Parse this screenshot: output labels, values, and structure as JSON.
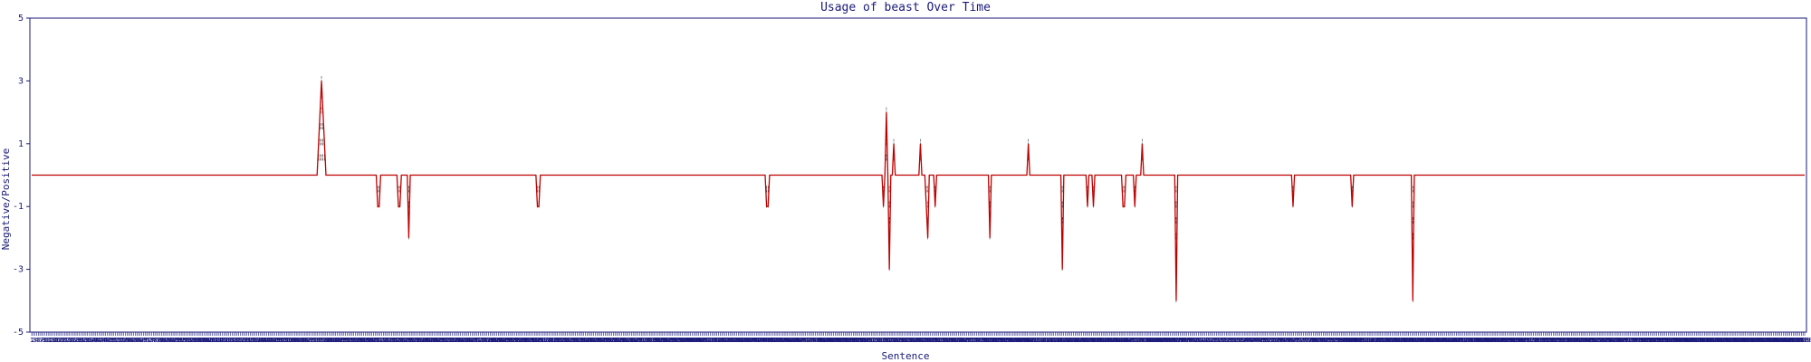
{
  "chart_data": {
    "type": "line",
    "title": "Usage of beast Over Time",
    "xlabel": "Sentence",
    "ylabel": "Negative/Positive",
    "ylim": [
      -5,
      5
    ],
    "yticks": [
      -5,
      -3,
      -1,
      1,
      3,
      5
    ],
    "x_count": 1080,
    "grid": false,
    "series": [
      {
        "values": [
          0,
          0,
          0,
          0,
          0,
          0,
          0,
          0,
          0,
          0,
          0,
          0,
          0,
          0,
          0,
          0,
          0,
          0,
          0,
          0,
          0,
          0,
          0,
          0,
          0,
          0,
          0,
          0,
          0,
          0,
          0,
          0,
          0,
          0,
          0,
          0,
          0,
          0,
          0,
          0,
          0,
          0,
          0,
          0,
          0,
          0,
          0,
          0,
          0,
          0,
          0,
          0,
          0,
          0,
          0,
          0,
          0,
          0,
          0,
          0,
          0,
          0,
          0,
          0,
          0,
          0,
          0,
          0,
          0,
          0,
          0,
          0,
          0,
          0,
          0,
          0,
          0,
          0,
          0,
          0,
          0,
          0,
          0,
          0,
          0,
          0,
          0,
          0,
          0,
          0,
          0,
          0,
          0,
          0,
          0,
          0,
          0,
          0,
          0,
          0,
          0,
          0,
          0,
          0,
          0,
          0,
          0,
          0,
          0,
          0,
          0,
          0,
          0,
          0,
          0,
          0,
          0,
          0,
          0,
          0,
          0,
          0,
          0,
          0,
          0,
          0,
          0,
          0,
          0,
          0,
          0,
          0,
          0,
          0,
          0,
          0,
          0,
          0,
          0,
          0,
          0,
          0,
          0,
          0,
          0,
          0,
          0,
          0,
          0,
          0,
          0,
          0,
          0,
          0,
          0,
          0,
          0,
          0,
          0,
          0,
          0,
          0,
          0,
          0,
          0,
          0,
          0,
          0,
          0,
          0,
          0,
          0,
          0,
          0,
          0,
          0,
          0,
          0,
          0,
          0,
          0,
          0,
          0,
          0,
          0,
          0,
          0,
          0,
          0,
          0,
          0,
          0,
          0,
          0,
          1,
          2,
          3,
          2,
          1,
          0,
          0,
          0,
          0,
          0,
          0,
          0,
          0,
          0,
          0,
          0,
          0,
          0,
          0,
          0,
          0,
          0,
          0,
          0,
          0,
          0,
          0,
          0,
          0,
          0,
          0,
          0,
          0,
          0,
          0,
          0,
          0,
          0,
          0,
          0,
          -1,
          -1,
          0,
          0,
          0,
          0,
          0,
          0,
          0,
          0,
          0,
          0,
          0,
          0,
          -1,
          -1,
          0,
          0,
          0,
          0,
          0,
          -2,
          0,
          0,
          0,
          0,
          0,
          0,
          0,
          0,
          0,
          0,
          0,
          0,
          0,
          0,
          0,
          0,
          0,
          0,
          0,
          0,
          0,
          0,
          0,
          0,
          0,
          0,
          0,
          0,
          0,
          0,
          0,
          0,
          0,
          0,
          0,
          0,
          0,
          0,
          0,
          0,
          0,
          0,
          0,
          0,
          0,
          0,
          0,
          0,
          0,
          0,
          0,
          0,
          0,
          0,
          0,
          0,
          0,
          0,
          0,
          0,
          0,
          0,
          0,
          0,
          0,
          0,
          0,
          0,
          0,
          0,
          0,
          0,
          0,
          0,
          0,
          0,
          0,
          0,
          0,
          0,
          0,
          0,
          0,
          0,
          0,
          0,
          -1,
          -1,
          0,
          0,
          0,
          0,
          0,
          0,
          0,
          0,
          0,
          0,
          0,
          0,
          0,
          0,
          0,
          0,
          0,
          0,
          0,
          0,
          0,
          0,
          0,
          0,
          0,
          0,
          0,
          0,
          0,
          0,
          0,
          0,
          0,
          0,
          0,
          0,
          0,
          0,
          0,
          0,
          0,
          0,
          0,
          0,
          0,
          0,
          0,
          0,
          0,
          0,
          0,
          0,
          0,
          0,
          0,
          0,
          0,
          0,
          0,
          0,
          0,
          0,
          0,
          0,
          0,
          0,
          0,
          0,
          0,
          0,
          0,
          0,
          0,
          0,
          0,
          0,
          0,
          0,
          0,
          0,
          0,
          0,
          0,
          0,
          0,
          0,
          0,
          0,
          0,
          0,
          0,
          0,
          0,
          0,
          0,
          0,
          0,
          0,
          0,
          0,
          0,
          0,
          0,
          0,
          0,
          0,
          0,
          0,
          0,
          0,
          0,
          0,
          0,
          0,
          0,
          0,
          0,
          0,
          0,
          0,
          0,
          0,
          0,
          0,
          0,
          0,
          0,
          0,
          0,
          0,
          0,
          0,
          0,
          0,
          0,
          0,
          0,
          0,
          0,
          0,
          0,
          0,
          0,
          0,
          0,
          0,
          0,
          0,
          0,
          0,
          0,
          0,
          0,
          -1,
          -1,
          0,
          0,
          0,
          0,
          0,
          0,
          0,
          0,
          0,
          0,
          0,
          0,
          0,
          0,
          0,
          0,
          0,
          0,
          0,
          0,
          0,
          0,
          0,
          0,
          0,
          0,
          0,
          0,
          0,
          0,
          0,
          0,
          0,
          0,
          0,
          0,
          0,
          0,
          0,
          0,
          0,
          0,
          0,
          0,
          0,
          0,
          0,
          0,
          0,
          0,
          0,
          0,
          0,
          0,
          0,
          0,
          0,
          0,
          0,
          0,
          0,
          0,
          0,
          0,
          0,
          0,
          0,
          0,
          0,
          0,
          0,
          0,
          0,
          0,
          0,
          0,
          0,
          -1,
          0,
          2,
          0,
          -3,
          0,
          0,
          1,
          0,
          0,
          0,
          0,
          0,
          0,
          0,
          0,
          0,
          0,
          0,
          0,
          0,
          0,
          0,
          0,
          0,
          1,
          0,
          0,
          0,
          -1,
          -2,
          0,
          0,
          0,
          0,
          -1,
          0,
          0,
          0,
          0,
          0,
          0,
          0,
          0,
          0,
          0,
          0,
          0,
          0,
          0,
          0,
          0,
          0,
          0,
          0,
          0,
          0,
          0,
          0,
          0,
          0,
          0,
          0,
          0,
          0,
          0,
          0,
          0,
          0,
          0,
          0,
          0,
          -2,
          0,
          0,
          0,
          0,
          0,
          0,
          0,
          0,
          0,
          0,
          0,
          0,
          0,
          0,
          0,
          0,
          0,
          0,
          0,
          0,
          0,
          0,
          0,
          0,
          0,
          1,
          0,
          0,
          0,
          0,
          0,
          0,
          0,
          0,
          0,
          0,
          0,
          0,
          0,
          0,
          0,
          0,
          0,
          0,
          0,
          0,
          0,
          0,
          -3,
          0,
          0,
          0,
          0,
          0,
          0,
          0,
          0,
          0,
          0,
          0,
          0,
          0,
          0,
          0,
          0,
          -1,
          0,
          0,
          0,
          -1,
          0,
          0,
          0,
          0,
          0,
          0,
          0,
          0,
          0,
          0,
          0,
          0,
          0,
          0,
          0,
          0,
          0,
          0,
          0,
          -1,
          -1,
          0,
          0,
          0,
          0,
          0,
          0,
          -1,
          0,
          0,
          0,
          0,
          1,
          0,
          0,
          0,
          0,
          0,
          0,
          0,
          0,
          0,
          0,
          0,
          0,
          0,
          0,
          0,
          0,
          0,
          0,
          0,
          0,
          0,
          0,
          -4,
          0,
          0,
          0,
          0,
          0,
          0,
          0,
          0,
          0,
          0,
          0,
          0,
          0,
          0,
          0,
          0,
          0,
          0,
          0,
          0,
          0,
          0,
          0,
          0,
          0,
          0,
          0,
          0,
          0,
          0,
          0,
          0,
          0,
          0,
          0,
          0,
          0,
          0,
          0,
          0,
          0,
          0,
          0,
          0,
          0,
          0,
          0,
          0,
          0,
          0,
          0,
          0,
          0,
          0,
          0,
          0,
          0,
          0,
          0,
          0,
          0,
          0,
          0,
          0,
          0,
          0,
          0,
          0,
          0,
          0,
          0,
          0,
          0,
          0,
          0,
          0,
          0,
          0,
          -1,
          0,
          0,
          0,
          0,
          0,
          0,
          0,
          0,
          0,
          0,
          0,
          0,
          0,
          0,
          0,
          0,
          0,
          0,
          0,
          0,
          0,
          0,
          0,
          0,
          0,
          0,
          0,
          0,
          0,
          0,
          0,
          0,
          0,
          0,
          0,
          0,
          0,
          0,
          0,
          -1,
          0,
          0,
          0,
          0,
          0,
          0,
          0,
          0,
          0,
          0,
          0,
          0,
          0,
          0,
          0,
          0,
          0,
          0,
          0,
          0,
          0,
          0,
          0,
          0,
          0,
          0,
          0,
          0,
          0,
          0,
          0,
          0,
          0,
          0,
          0,
          0,
          0,
          0,
          0,
          0,
          -4,
          0,
          0,
          0,
          0,
          0,
          0,
          0,
          0,
          0,
          0,
          0,
          0,
          0,
          0,
          0,
          0,
          0,
          0,
          0,
          0,
          0,
          0,
          0,
          0,
          0,
          0,
          0,
          0,
          0,
          0,
          0,
          0,
          0,
          0,
          0,
          0,
          0,
          0,
          0,
          0,
          0,
          0,
          0,
          0,
          0,
          0,
          0,
          0,
          0,
          0,
          0,
          0,
          0,
          0,
          0,
          0,
          0,
          0,
          0,
          0,
          0,
          0,
          0,
          0,
          0,
          0,
          0,
          0,
          0,
          0,
          0,
          0,
          0,
          0,
          0,
          0,
          0,
          0,
          0,
          0,
          0,
          0,
          0,
          0,
          0,
          0,
          0,
          0,
          0,
          0,
          0,
          0,
          0,
          0,
          0,
          0,
          0,
          0,
          0,
          0,
          0,
          0,
          0,
          0,
          0,
          0,
          0,
          0,
          0,
          0,
          0,
          0,
          0,
          0,
          0,
          0,
          0,
          0,
          0,
          0,
          0,
          0,
          0,
          0,
          0,
          0,
          0,
          0,
          0,
          0,
          0,
          0,
          0,
          0,
          0,
          0,
          0,
          0,
          0,
          0,
          0,
          0,
          0,
          0,
          0,
          0,
          0,
          0,
          0,
          0,
          0,
          0,
          0,
          0,
          0,
          0,
          0,
          0,
          0,
          0,
          0,
          0,
          0,
          0,
          0,
          0,
          0,
          0,
          0,
          0,
          0,
          0,
          0,
          0,
          0,
          0,
          0,
          0,
          0,
          0,
          0,
          0,
          0,
          0,
          0,
          0,
          0,
          0,
          0,
          0,
          0,
          0,
          0,
          0,
          0,
          0,
          0,
          0,
          0,
          0,
          0,
          0,
          0,
          0,
          0,
          0,
          0,
          0,
          0,
          0,
          0,
          0,
          0,
          0,
          0,
          0,
          0,
          0,
          0,
          0,
          0,
          0,
          0,
          0,
          0,
          0,
          0,
          0,
          0,
          0,
          0,
          0,
          0,
          0,
          0,
          0,
          0,
          0,
          0,
          0,
          0,
          0,
          0,
          0,
          0,
          0,
          0,
          0,
          0,
          0,
          0,
          0,
          0,
          0,
          0,
          0,
          0,
          0,
          0,
          0,
          0,
          0,
          0,
          0,
          0
        ]
      }
    ],
    "line_color": "#c00000",
    "glyph_color": "#555555",
    "axis_color": "#1a1a7a"
  }
}
